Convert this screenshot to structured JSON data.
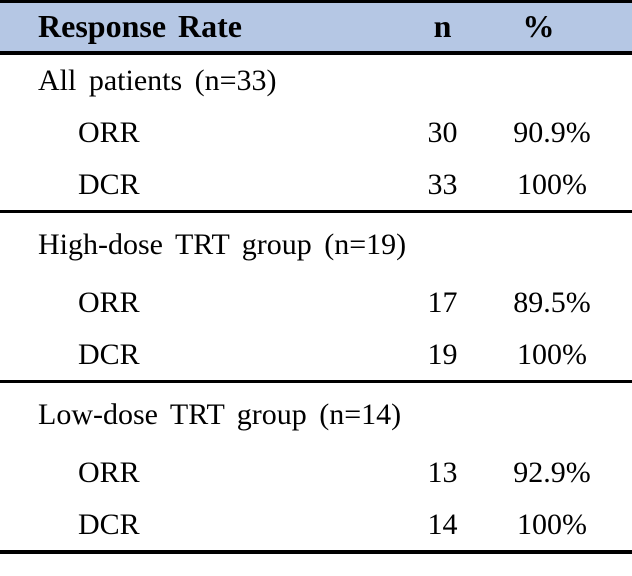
{
  "table": {
    "colors": {
      "header_bg": "#b5c7e4",
      "border": "#000000",
      "text": "#000000"
    },
    "header": {
      "response_rate": "Response Rate",
      "n": "n",
      "percent": "%"
    },
    "sections": [
      {
        "group": "All patients (n=33)",
        "rows": [
          {
            "label": "ORR",
            "n": "30",
            "pct": "90.9%"
          },
          {
            "label": "DCR",
            "n": "33",
            "pct": "100%"
          }
        ]
      },
      {
        "group": "High-dose TRT group (n=19)",
        "rows": [
          {
            "label": "ORR",
            "n": "17",
            "pct": "89.5%"
          },
          {
            "label": "DCR",
            "n": "19",
            "pct": "100%"
          }
        ]
      },
      {
        "group": "Low-dose TRT group (n=14)",
        "rows": [
          {
            "label": "ORR",
            "n": "13",
            "pct": "92.9%"
          },
          {
            "label": "DCR",
            "n": "14",
            "pct": "100%"
          }
        ]
      }
    ]
  }
}
